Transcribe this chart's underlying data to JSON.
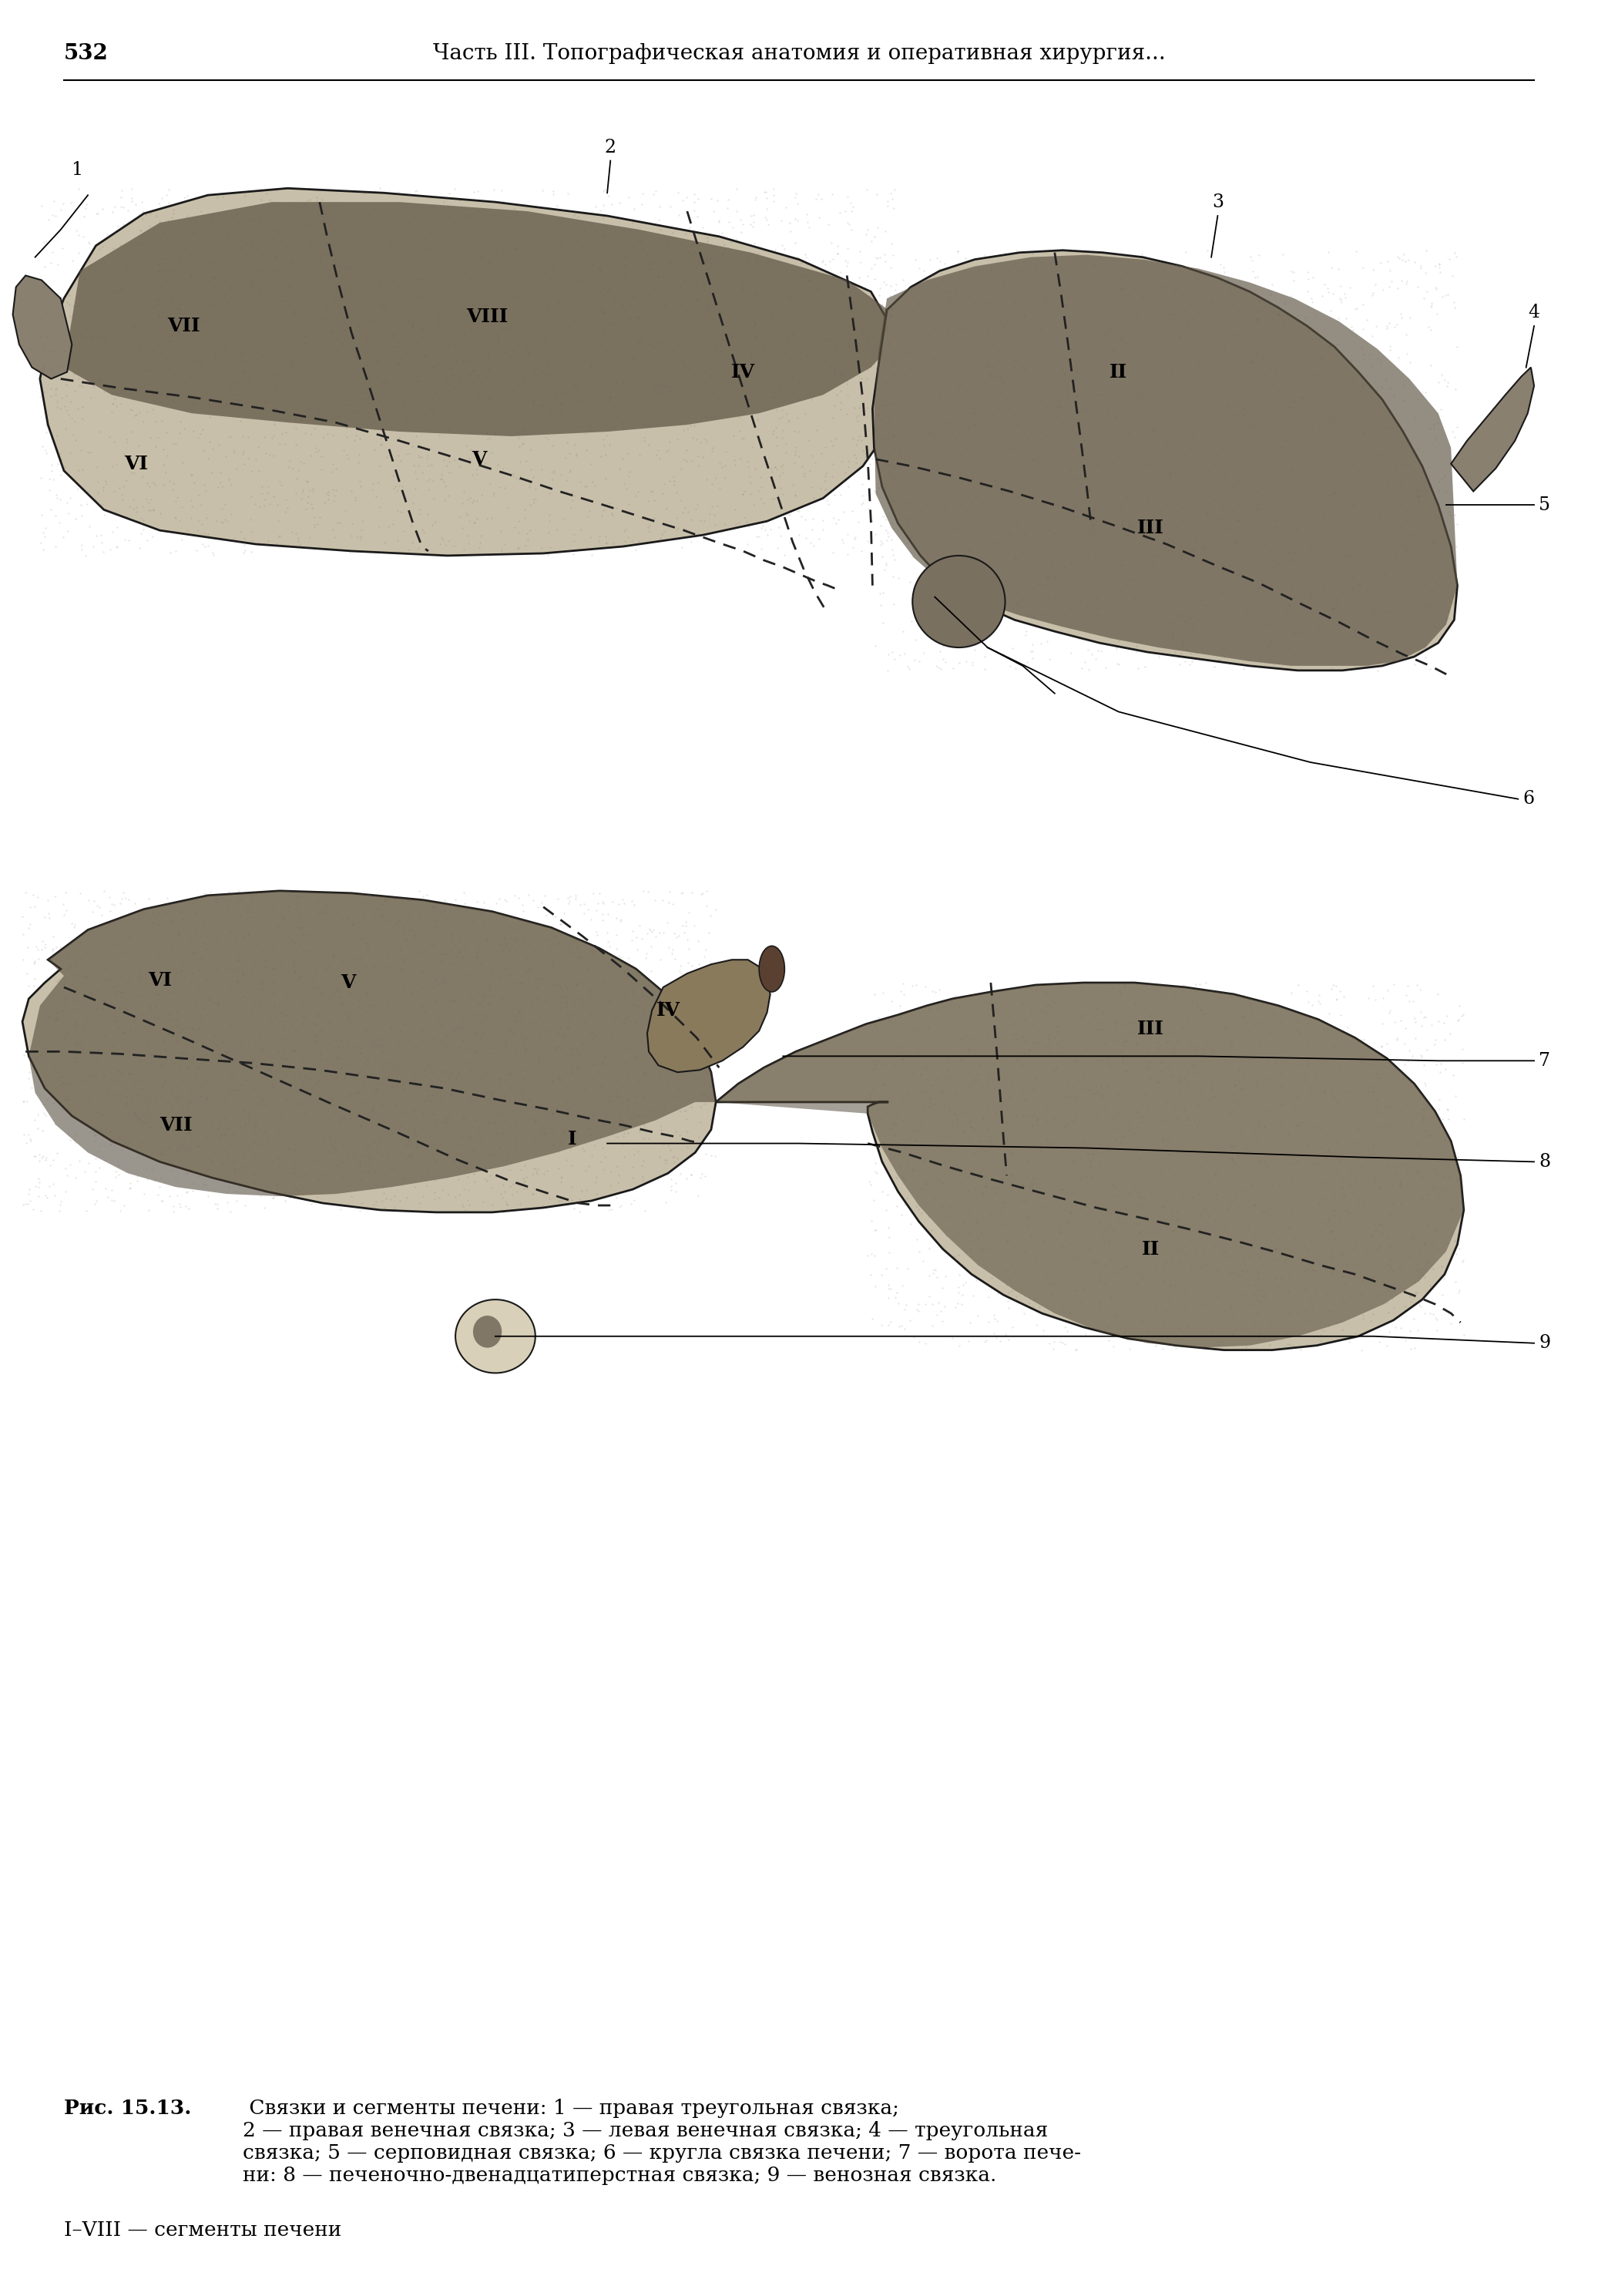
{
  "page_number": "532",
  "header_text": "Часть III. Топографическая анатомия и оперативная хирургия...",
  "caption_bold": "Рис. 15.13.",
  "caption_rest": " Связки и сегменты печени: 1 — правая треугольная связка;\n2 — правая венечная связка; 3 — левая венечная связка; 4 — треугольная\nсвязка; 5 — серповидная связка; 6 — кругла связка печени; 7 — ворота пече-\nни: 8 — печеночно-двенадцатиперстная связка; 9 — венозная связка.",
  "caption_last": "I–VIII — сегменты печени",
  "bg_color": "#ffffff",
  "text_color": "#000000",
  "liver_fill": "#c8bfaa",
  "liver_dark": "#6a6050",
  "liver_edge": "#1a1a1a",
  "liver_shadow": "#8a8070",
  "header_fontsize": 20,
  "page_num_fontsize": 20,
  "caption_fontsize": 19,
  "seg_fontsize": 18,
  "num_fontsize": 17
}
